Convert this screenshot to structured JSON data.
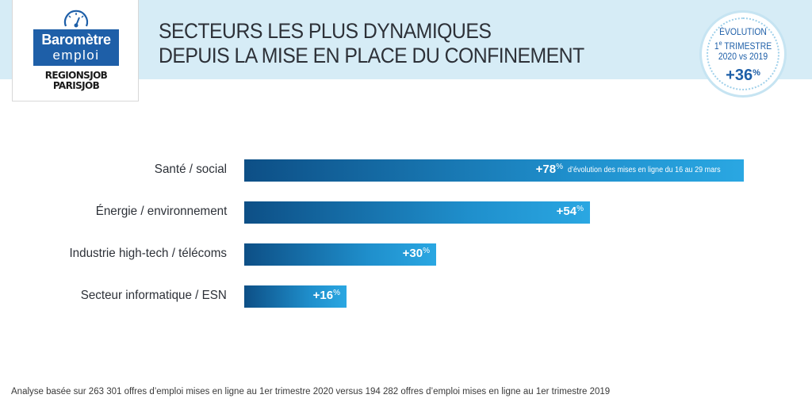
{
  "header": {
    "title_line1": "SECTEURS LES PLUS DYNAMIQUES",
    "title_line2": "DEPUIS LA MISE EN PLACE DU CONFINEMENT"
  },
  "logo": {
    "line1": "Baromètre",
    "line2": "emploi",
    "brand1": "REGIONSJOB",
    "brand2": "PARISJOB"
  },
  "badge": {
    "line1": "ÉVOLUTION",
    "line2_num": "1",
    "line2_sup": "e",
    "line2_rest": " TRIMESTRE",
    "line3": "2020 vs 2019",
    "value": "+36",
    "unit": "%"
  },
  "chart_data": {
    "type": "bar",
    "orientation": "horizontal",
    "title": "SECTEURS LES PLUS DYNAMIQUES DEPUIS LA MISE EN PLACE DU CONFINEMENT",
    "categories": [
      "Santé / social",
      "Énergie / environnement",
      "Industrie high-tech / télécoms",
      "Secteur informatique / ESN"
    ],
    "values": [
      78,
      54,
      30,
      16
    ],
    "value_labels": [
      "+78",
      "+54",
      "+30",
      "+16"
    ],
    "unit": "%",
    "annotation": "d’évolution des mises en ligne du 16 au 29 mars",
    "xlim": [
      0,
      78
    ],
    "colors": {
      "bar_start": "#0d4f86",
      "bar_end": "#2aa7e2"
    }
  },
  "footnote": "Analyse basée sur 263 301 offres d’emploi mises en ligne au 1er trimestre 2020 versus 194 282 offres d’emploi mises en ligne au 1er trimestre 2019",
  "colors": {
    "band": "#d6ecf6",
    "brand_blue": "#1e5fa8",
    "text": "#2d3138"
  }
}
